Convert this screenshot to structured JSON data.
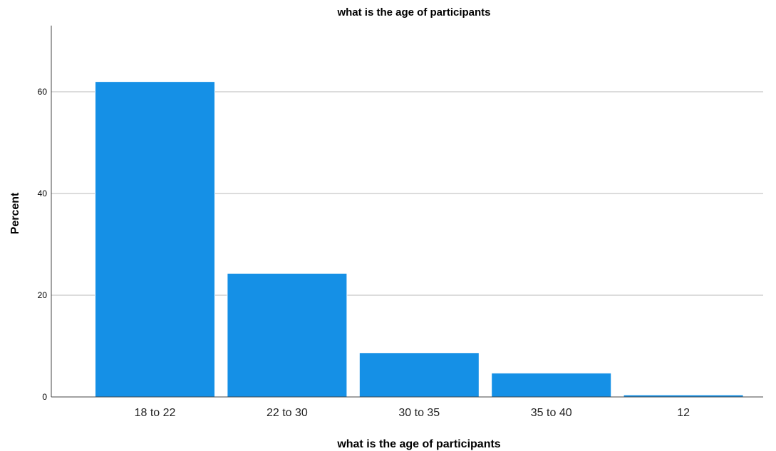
{
  "chart_data": {
    "type": "bar",
    "title": "what is the age of participants",
    "xlabel": "what is the age of participants",
    "ylabel": "Percent",
    "categories": [
      "18 to 22",
      "22 to 30",
      "30 to 35",
      "35 to 40",
      "12"
    ],
    "values": [
      62.0,
      24.3,
      8.7,
      4.7,
      0.4
    ],
    "ylim": [
      0,
      73
    ],
    "yticks": [
      0,
      20,
      40,
      60
    ],
    "ytick_labels": [
      "0",
      "20",
      "40",
      "60"
    ],
    "grid": true,
    "legend": "none",
    "bar_color": "#1590e6",
    "grid_color": "#b9b9b9"
  }
}
